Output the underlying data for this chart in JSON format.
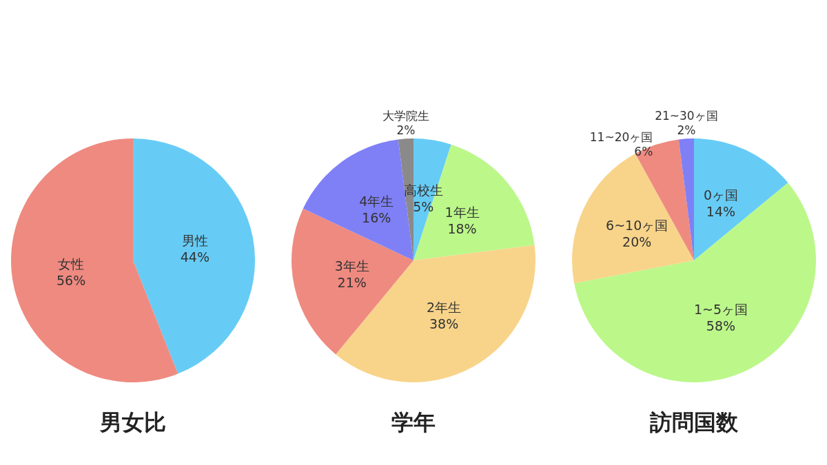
{
  "chart_data": [
    {
      "type": "pie",
      "title": "男女比",
      "categories": [
        "男性",
        "女性"
      ],
      "values": [
        44,
        56
      ],
      "value_labels": [
        "44%",
        "56%"
      ],
      "colors": [
        "#66ccf6",
        "#ef8a80"
      ]
    },
    {
      "type": "pie",
      "title": "学年",
      "categories": [
        "高校生",
        "1年生",
        "2年生",
        "3年生",
        "4年生",
        "大学院生"
      ],
      "values": [
        5,
        18,
        38,
        21,
        16,
        2
      ],
      "value_labels": [
        "5%",
        "18%",
        "38%",
        "21%",
        "16%",
        "2%"
      ],
      "colors": [
        "#66ccf6",
        "#bcf78a",
        "#f8d48a",
        "#ef8a80",
        "#7f80f6",
        "#8a8a8a"
      ]
    },
    {
      "type": "pie",
      "title": "訪問国数",
      "categories": [
        "0ヶ国",
        "1~5ヶ国",
        "6~10ヶ国",
        "11~20ヶ国",
        "21~30ヶ国"
      ],
      "values": [
        14,
        58,
        20,
        6,
        2
      ],
      "value_labels": [
        "14%",
        "58%",
        "20%",
        "6%",
        "2%"
      ],
      "colors": [
        "#66ccf6",
        "#bcf78a",
        "#f8d48a",
        "#ef8a80",
        "#7f80f6"
      ]
    }
  ]
}
